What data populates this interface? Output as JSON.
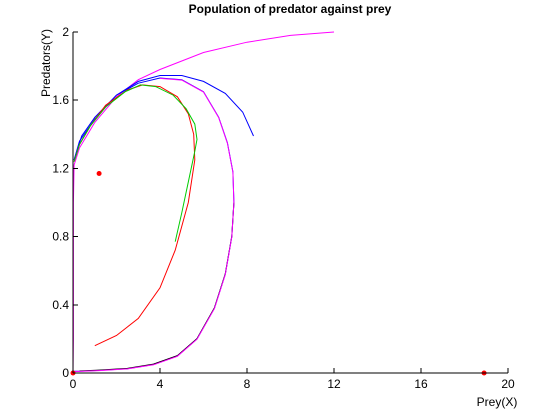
{
  "chart_data": {
    "type": "line",
    "title": "Population of predator against prey",
    "xlabel": "Prey(X)",
    "ylabel": "Predators(Y)",
    "xlim": [
      0,
      20
    ],
    "ylim": [
      0,
      2
    ],
    "xticks": [
      0,
      4,
      8,
      12,
      16,
      20
    ],
    "xtick_labels": [
      "0",
      "4",
      "8",
      "12",
      "16",
      "20"
    ],
    "yticks": [
      0,
      0.4,
      0.8,
      1.2,
      1.6,
      2
    ],
    "ytick_labels": [
      "0",
      "0.4",
      "0.8",
      "1.2",
      "1.6",
      "2"
    ],
    "grid": false,
    "legend": "none",
    "series": [
      {
        "color": "#ff00ff",
        "points": [
          [
            12.0,
            2.0
          ],
          [
            10.0,
            1.98
          ],
          [
            8.0,
            1.94
          ],
          [
            6.0,
            1.88
          ],
          [
            4.0,
            1.78
          ],
          [
            3.0,
            1.72
          ],
          [
            2.0,
            1.62
          ],
          [
            1.0,
            1.47
          ],
          [
            0.3,
            1.32
          ],
          [
            0.05,
            1.22
          ],
          [
            0.02,
            1.0
          ],
          [
            0.02,
            0.6
          ],
          [
            0.02,
            0.2
          ],
          [
            0.0,
            0.0
          ]
        ]
      },
      {
        "color": "#0000ff",
        "points": [
          [
            8.3,
            1.39
          ],
          [
            7.8,
            1.53
          ],
          [
            7.0,
            1.64
          ],
          [
            6.0,
            1.71
          ],
          [
            5.0,
            1.745
          ],
          [
            4.0,
            1.745
          ],
          [
            3.0,
            1.71
          ],
          [
            2.0,
            1.63
          ],
          [
            1.0,
            1.49
          ],
          [
            0.3,
            1.36
          ],
          [
            0.05,
            1.25
          ]
        ]
      },
      {
        "color": "#0000ff",
        "points": [
          [
            0.05,
            1.25
          ],
          [
            0.4,
            1.39
          ],
          [
            1.0,
            1.5
          ],
          [
            2.0,
            1.63
          ],
          [
            3.0,
            1.7
          ],
          [
            4.0,
            1.73
          ],
          [
            5.0,
            1.72
          ],
          [
            6.0,
            1.65
          ],
          [
            6.7,
            1.5
          ],
          [
            7.1,
            1.35
          ],
          [
            7.35,
            1.18
          ],
          [
            7.4,
            1.0
          ],
          [
            7.3,
            0.8
          ],
          [
            7.0,
            0.58
          ],
          [
            6.5,
            0.38
          ],
          [
            5.7,
            0.2
          ],
          [
            4.8,
            0.1
          ],
          [
            3.7,
            0.05
          ],
          [
            2.5,
            0.025
          ],
          [
            1.2,
            0.015
          ],
          [
            0.3,
            0.01
          ],
          [
            0.0,
            0.01
          ]
        ]
      },
      {
        "color": "#000000",
        "points": [
          [
            0.3,
            0.012
          ],
          [
            1.2,
            0.017
          ],
          [
            2.5,
            0.027
          ],
          [
            3.7,
            0.052
          ],
          [
            4.8,
            0.102
          ],
          [
            5.7,
            0.202
          ],
          [
            6.5,
            0.382
          ],
          [
            7.0,
            0.582
          ],
          [
            7.3,
            0.802
          ],
          [
            7.4,
            1.0
          ]
        ]
      },
      {
        "color": "#ff00ff",
        "points": [
          [
            0.0,
            0.008
          ],
          [
            1.2,
            0.014
          ],
          [
            2.5,
            0.024
          ],
          [
            3.7,
            0.048
          ],
          [
            4.8,
            0.098
          ],
          [
            5.7,
            0.198
          ],
          [
            6.5,
            0.378
          ],
          [
            7.0,
            0.578
          ],
          [
            7.3,
            0.798
          ],
          [
            7.4,
            0.998
          ],
          [
            7.35,
            1.178
          ],
          [
            7.1,
            1.348
          ],
          [
            6.7,
            1.498
          ],
          [
            6.0,
            1.648
          ],
          [
            5.0,
            1.718
          ],
          [
            4.0,
            1.728
          ]
        ]
      },
      {
        "color": "#ff0000",
        "points": [
          [
            1.0,
            0.16
          ],
          [
            2.0,
            0.22
          ],
          [
            3.0,
            0.32
          ],
          [
            4.0,
            0.5
          ],
          [
            4.7,
            0.72
          ],
          [
            5.3,
            1.0
          ],
          [
            5.6,
            1.25
          ],
          [
            5.55,
            1.4
          ],
          [
            5.3,
            1.52
          ],
          [
            4.8,
            1.62
          ],
          [
            4.0,
            1.68
          ],
          [
            3.2,
            1.69
          ],
          [
            2.5,
            1.66
          ],
          [
            1.5,
            1.57
          ],
          [
            0.8,
            1.45
          ],
          [
            0.3,
            1.34
          ],
          [
            0.05,
            1.24
          ]
        ]
      },
      {
        "color": "#00cc00",
        "points": [
          [
            4.7,
            0.77
          ],
          [
            5.0,
            0.94
          ],
          [
            5.3,
            1.12
          ],
          [
            5.6,
            1.3
          ],
          [
            5.7,
            1.37
          ],
          [
            5.6,
            1.46
          ],
          [
            5.2,
            1.55
          ],
          [
            4.6,
            1.63
          ],
          [
            3.8,
            1.68
          ],
          [
            3.1,
            1.69
          ],
          [
            2.4,
            1.65
          ],
          [
            1.5,
            1.56
          ],
          [
            0.8,
            1.45
          ],
          [
            0.3,
            1.34
          ],
          [
            0.05,
            1.24
          ]
        ]
      }
    ],
    "markers": [
      {
        "x": 1.2,
        "y": 1.17,
        "color": "#ff0000"
      },
      {
        "x": 0.0,
        "y": 0.0,
        "color": "#ff0000"
      },
      {
        "x": 18.9,
        "y": 0.0,
        "color": "#ff0000"
      }
    ]
  }
}
